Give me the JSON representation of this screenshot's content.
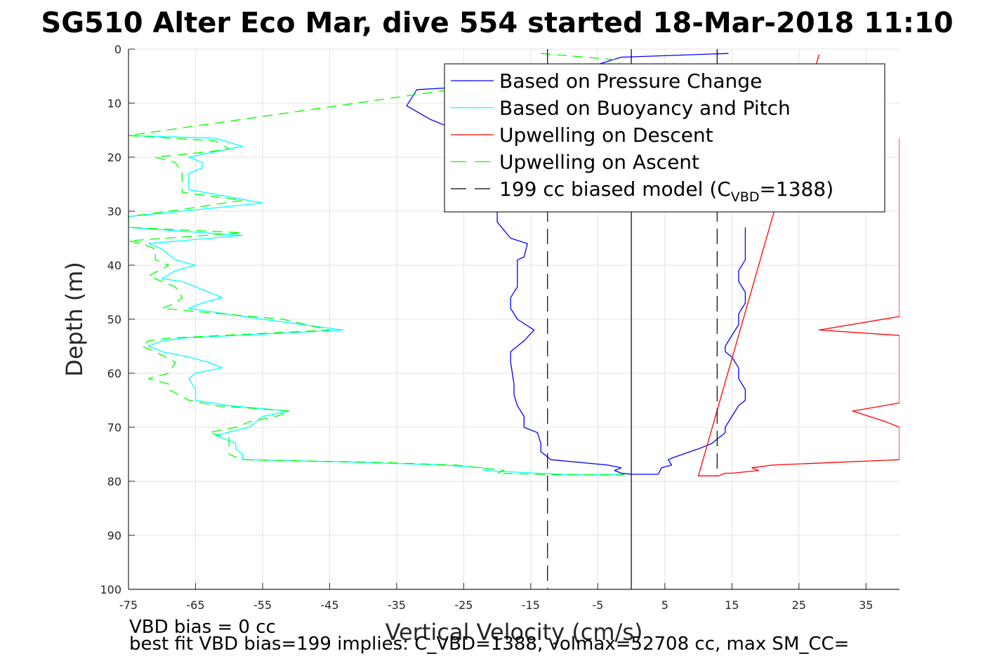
{
  "chart_data": {
    "type": "line",
    "title": "SG510 Alter Eco Mar, dive 554 started 18-Mar-2018 11:10",
    "xlabel": "Vertical Velocity (cm/s)",
    "ylabel": "Depth (m)",
    "xlim": [
      -75,
      40
    ],
    "ylim": [
      0,
      100
    ],
    "y_reversed": true,
    "grid": true,
    "xticks": [
      -75,
      -65,
      -55,
      -45,
      -35,
      -25,
      -15,
      -5,
      5,
      15,
      25,
      35
    ],
    "yticks": [
      0,
      10,
      20,
      30,
      40,
      50,
      60,
      70,
      80,
      90,
      100
    ],
    "legend_position": "top-right",
    "notes": [
      "VBD bias = 0 cc",
      "best fit VBD bias=199 implies: C_VBD=1388, volmax=52708 cc, max SM_CC="
    ],
    "series": [
      {
        "name": "Based on Pressure Change",
        "color": "#0000ff",
        "style": "solid",
        "points": [
          [
            14.5,
            0.8
          ],
          [
            -1.5,
            1.5
          ],
          [
            -8,
            4
          ],
          [
            -18,
            6.5
          ],
          [
            -32,
            7.5
          ],
          [
            -33.5,
            10.5
          ],
          [
            -30,
            13
          ],
          [
            -26,
            15
          ],
          [
            -22,
            16
          ],
          [
            -20,
            17
          ],
          [
            -20,
            30
          ],
          [
            -20,
            32
          ],
          [
            -18,
            35
          ],
          [
            -15.5,
            36
          ],
          [
            -16,
            38.5
          ],
          [
            -17,
            39
          ],
          [
            -17,
            44
          ],
          [
            -18,
            46
          ],
          [
            -18,
            48
          ],
          [
            -17,
            50
          ],
          [
            -14.5,
            52
          ],
          [
            -16,
            54
          ],
          [
            -18,
            56
          ],
          [
            -18,
            58
          ],
          [
            -17.5,
            62
          ],
          [
            -17.5,
            64
          ],
          [
            -17,
            66
          ],
          [
            -16,
            68
          ],
          [
            -16,
            70
          ],
          [
            -14,
            71
          ],
          [
            -13.5,
            73
          ],
          [
            -13.5,
            74.5
          ],
          [
            -12,
            76
          ],
          [
            -3.5,
            77
          ],
          [
            -1.5,
            77.5
          ],
          [
            -2.5,
            78
          ],
          [
            -1.5,
            78.5
          ],
          [
            0,
            78.7
          ],
          [
            4,
            78.7
          ],
          [
            4.5,
            77.5
          ],
          [
            6,
            77
          ],
          [
            5.5,
            76
          ],
          [
            6.5,
            75.5
          ],
          [
            10,
            74
          ],
          [
            12,
            73
          ],
          [
            13,
            72
          ],
          [
            14,
            71
          ],
          [
            14,
            70
          ],
          [
            15,
            68
          ],
          [
            16,
            66
          ],
          [
            17,
            65
          ],
          [
            17,
            63
          ],
          [
            16,
            61
          ],
          [
            16,
            59
          ],
          [
            15,
            57
          ],
          [
            14,
            56
          ],
          [
            14,
            55
          ],
          [
            15,
            53
          ],
          [
            16,
            51
          ],
          [
            16,
            49
          ],
          [
            17,
            47
          ],
          [
            17,
            45
          ],
          [
            16,
            43
          ],
          [
            16,
            41
          ],
          [
            17,
            39
          ],
          [
            17,
            37
          ],
          [
            17,
            35
          ],
          [
            17,
            33
          ]
        ]
      },
      {
        "name": "Based on Buoyancy and Pitch",
        "color": "#00ffff",
        "style": "solid",
        "points": [
          [
            -75,
            16
          ],
          [
            -62,
            16.5
          ],
          [
            -58,
            18
          ],
          [
            -62,
            19
          ],
          [
            -66,
            20
          ],
          [
            -64,
            21
          ],
          [
            -64,
            22
          ],
          [
            -66,
            23
          ],
          [
            -66,
            26
          ],
          [
            -55,
            28.5
          ],
          [
            -67,
            30
          ],
          [
            -75,
            31
          ],
          [
            -75,
            33
          ],
          [
            -58,
            34.5
          ],
          [
            -72,
            36
          ],
          [
            -70,
            37
          ],
          [
            -69,
            38
          ],
          [
            -68,
            39
          ],
          [
            -65,
            40
          ],
          [
            -68,
            41
          ],
          [
            -70,
            42.5
          ],
          [
            -67,
            43
          ],
          [
            -65,
            44
          ],
          [
            -63,
            45
          ],
          [
            -61,
            46
          ],
          [
            -64,
            47
          ],
          [
            -66,
            48
          ],
          [
            -55,
            50
          ],
          [
            -43,
            52
          ],
          [
            -67,
            53.5
          ],
          [
            -70,
            54
          ],
          [
            -72,
            55
          ],
          [
            -70,
            56
          ],
          [
            -66,
            57
          ],
          [
            -63,
            58
          ],
          [
            -61,
            59
          ],
          [
            -65,
            60
          ],
          [
            -66,
            61
          ],
          [
            -65,
            63
          ],
          [
            -65,
            65
          ],
          [
            -60,
            66
          ],
          [
            -51,
            67
          ],
          [
            -55,
            68
          ],
          [
            -57,
            70
          ],
          [
            -62,
            71.5
          ],
          [
            -61,
            72
          ],
          [
            -59,
            73
          ],
          [
            -59,
            74
          ],
          [
            -58,
            75
          ],
          [
            -58,
            76
          ],
          [
            -40,
            76.5
          ],
          [
            -28,
            77
          ],
          [
            -22,
            77.5
          ],
          [
            -22,
            78
          ],
          [
            -14,
            78.5
          ],
          [
            -8,
            78.8
          ],
          [
            -1,
            78.7
          ]
        ]
      },
      {
        "name": "Upwelling on Descent",
        "color": "#ff0000",
        "style": "solid",
        "points": [
          [
            28,
            1
          ],
          [
            10,
            79
          ],
          [
            13,
            79
          ],
          [
            14,
            78.5
          ],
          [
            15,
            78.5
          ],
          [
            19,
            78
          ],
          [
            18,
            77.5
          ],
          [
            21,
            77
          ],
          [
            40,
            76
          ],
          [
            40,
            70
          ],
          [
            38,
            69
          ],
          [
            33,
            67
          ],
          [
            40,
            65.5
          ],
          [
            40,
            53
          ],
          [
            28,
            52
          ],
          [
            40,
            49.5
          ],
          [
            40,
            34.5
          ],
          [
            40,
            29.5
          ],
          [
            40,
            27.5
          ],
          [
            40,
            16.5
          ]
        ]
      },
      {
        "name": "Upwelling on Ascent",
        "color": "#00ff00",
        "style": "dashed",
        "points": [
          [
            -13.5,
            0.8
          ],
          [
            -2,
            2
          ],
          [
            -1.5,
            3
          ],
          [
            -75,
            16
          ],
          [
            -62,
            17
          ],
          [
            -60,
            18.5
          ],
          [
            -63,
            19
          ],
          [
            -71,
            20
          ],
          [
            -68,
            21
          ],
          [
            -67,
            23
          ],
          [
            -67,
            25
          ],
          [
            -67,
            26.5
          ],
          [
            -58,
            28
          ],
          [
            -66,
            29.5
          ],
          [
            -75,
            31
          ],
          [
            -75,
            33
          ],
          [
            -58,
            34
          ],
          [
            -75,
            35.5
          ],
          [
            -73,
            36
          ],
          [
            -71,
            37
          ],
          [
            -71,
            39
          ],
          [
            -69,
            40
          ],
          [
            -72,
            42
          ],
          [
            -70,
            43
          ],
          [
            -68,
            44
          ],
          [
            -67,
            46
          ],
          [
            -68,
            47
          ],
          [
            -70,
            48
          ],
          [
            -52,
            50
          ],
          [
            -45,
            52
          ],
          [
            -69,
            53.5
          ],
          [
            -72,
            54
          ],
          [
            -73,
            55
          ],
          [
            -71,
            56
          ],
          [
            -68,
            58
          ],
          [
            -69,
            60
          ],
          [
            -72,
            61
          ],
          [
            -69,
            62
          ],
          [
            -69,
            63
          ],
          [
            -66,
            65
          ],
          [
            -62,
            66
          ],
          [
            -51,
            67
          ],
          [
            -53,
            68
          ],
          [
            -57,
            69
          ],
          [
            -59,
            70
          ],
          [
            -63,
            71
          ],
          [
            -60,
            72
          ],
          [
            -60,
            74
          ],
          [
            -60,
            75
          ],
          [
            -58,
            76
          ],
          [
            -38,
            76.5
          ],
          [
            -26,
            77
          ],
          [
            -19,
            78
          ],
          [
            -20,
            78.5
          ],
          [
            -10,
            78.8
          ],
          [
            -1,
            78.8
          ]
        ]
      },
      {
        "name": "199 cc biased model (C",
        "name_sub": "VBD",
        "name_end": "=1388)",
        "color": "#000000",
        "style": "dashed",
        "lines": [
          {
            "x": -12.5,
            "y": [
              0,
              100
            ],
            "style": "dashed"
          },
          {
            "x": 12.8,
            "y": [
              0,
              79
            ],
            "style": "dashed"
          },
          {
            "x": 0,
            "y": [
              0,
              100
            ],
            "style": "solid"
          }
        ]
      }
    ]
  }
}
